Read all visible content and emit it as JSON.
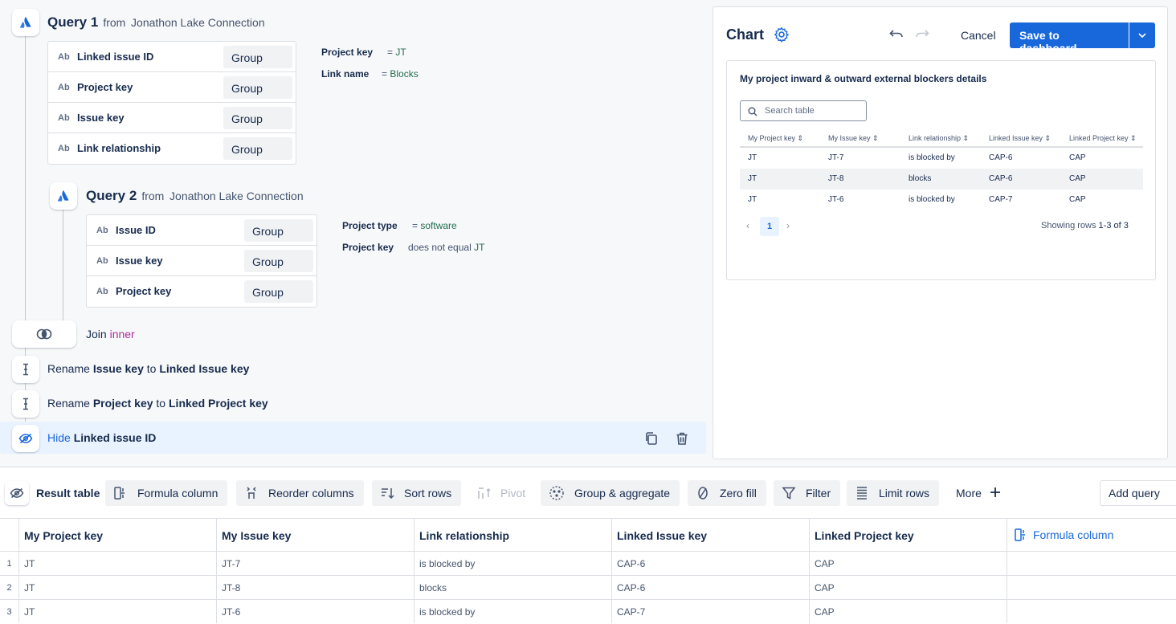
{
  "query1": {
    "title": "Query 1",
    "from_label": "from",
    "connection": "Jonathon Lake Connection",
    "columns": [
      {
        "type": "Ab",
        "name": "Linked issue ID",
        "agg": "Group"
      },
      {
        "type": "Ab",
        "name": "Project key",
        "agg": "Group"
      },
      {
        "type": "Ab",
        "name": "Issue key",
        "agg": "Group"
      },
      {
        "type": "Ab",
        "name": "Link relationship",
        "agg": "Group"
      }
    ],
    "filters": [
      {
        "field": "Project key",
        "op": "=",
        "value": "JT"
      },
      {
        "field": "Link name",
        "op": "=",
        "value": "Blocks"
      }
    ]
  },
  "query2": {
    "title": "Query 2",
    "from_label": "from",
    "connection": "Jonathon Lake Connection",
    "columns": [
      {
        "type": "Ab",
        "name": "Issue ID",
        "agg": "Group"
      },
      {
        "type": "Ab",
        "name": "Issue key",
        "agg": "Group"
      },
      {
        "type": "Ab",
        "name": "Project key",
        "agg": "Group"
      }
    ],
    "filters": [
      {
        "field": "Project type",
        "op": "=",
        "value": "software"
      },
      {
        "field": "Project key",
        "op": "does not equal",
        "value": "JT"
      }
    ]
  },
  "join": {
    "label": "Join",
    "type": "inner"
  },
  "steps": [
    {
      "verb": "Rename",
      "from": "Issue key",
      "to_word": "to",
      "to": "Linked Issue key"
    },
    {
      "verb": "Rename",
      "from": "Project key",
      "to_word": "to",
      "to": "Linked Project key"
    }
  ],
  "hide_step": {
    "verb": "Hide",
    "target": "Linked issue ID"
  },
  "chart": {
    "title": "Chart",
    "cancel": "Cancel",
    "save": "Save to dashboard",
    "card_title": "My project inward & outward external blockers details",
    "search_placeholder": "Search table",
    "headers": [
      "My Project key",
      "My Issue key",
      "Link relationship",
      "Linked Issue key",
      "Linked Project key"
    ],
    "rows": [
      [
        "JT",
        "JT-7",
        "is blocked by",
        "CAP-6",
        "CAP"
      ],
      [
        "JT",
        "JT-8",
        "blocks",
        "CAP-6",
        "CAP"
      ],
      [
        "JT",
        "JT-6",
        "is blocked by",
        "CAP-7",
        "CAP"
      ]
    ],
    "page": "1",
    "showing_prefix": "Showing rows",
    "showing_range": "1-3 of 3"
  },
  "toolbar": {
    "result_table": "Result table",
    "formula_column": "Formula column",
    "reorder_columns": "Reorder columns",
    "sort_rows": "Sort rows",
    "pivot": "Pivot",
    "group_aggregate": "Group & aggregate",
    "zero_fill": "Zero fill",
    "filter": "Filter",
    "limit_rows": "Limit rows",
    "more": "More",
    "add_query": "Add query"
  },
  "result": {
    "headers": [
      "My Project key",
      "My Issue key",
      "Link relationship",
      "Linked Issue key",
      "Linked Project key"
    ],
    "formula_header": "Formula column",
    "row_numbers": [
      "1",
      "2",
      "3"
    ],
    "rows": [
      [
        "JT",
        "JT-7",
        "is blocked by",
        "CAP-6",
        "CAP"
      ],
      [
        "JT",
        "JT-8",
        "blocks",
        "CAP-6",
        "CAP"
      ],
      [
        "JT",
        "JT-6",
        "is blocked by",
        "CAP-7",
        "CAP"
      ]
    ]
  }
}
